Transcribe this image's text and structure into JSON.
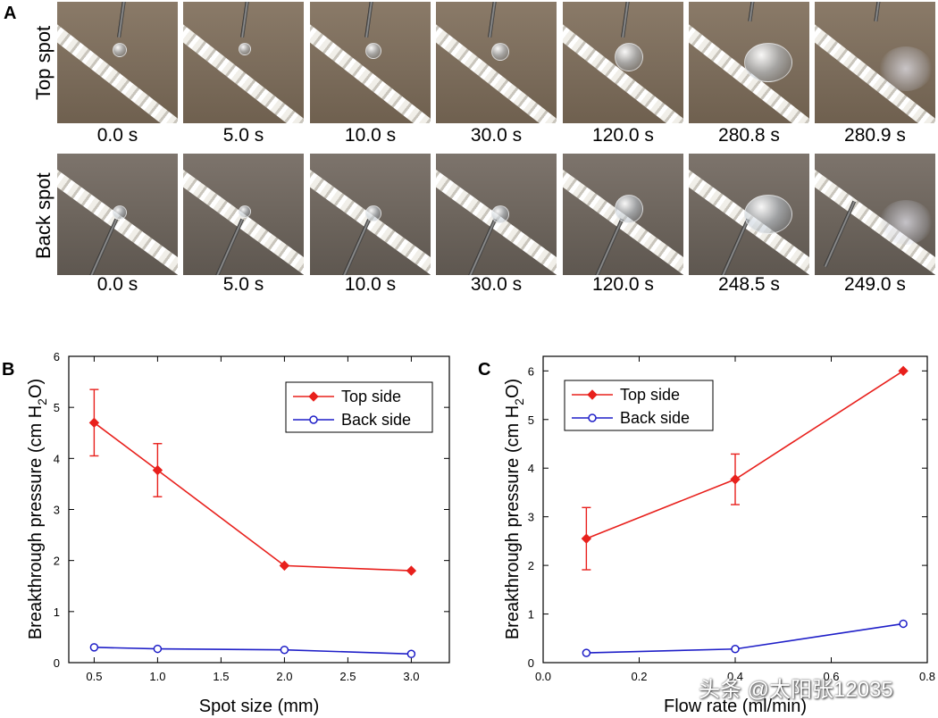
{
  "panel_a": {
    "letter": "A",
    "rows": [
      {
        "label": "Top spot",
        "times": [
          "0.0 s",
          "5.0 s",
          "10.0 s",
          "30.0 s",
          "120.0 s",
          "280.8 s",
          "280.9 s"
        ]
      },
      {
        "label": "Back spot",
        "times": [
          "0.0 s",
          "5.0 s",
          "10.0 s",
          "30.0 s",
          "120.0 s",
          "248.5 s",
          "249.0 s"
        ]
      }
    ]
  },
  "watermark": "头条 @太阳张12035",
  "chart_data": [
    {
      "panel": "B",
      "type": "line",
      "xlabel": "Spot size (mm)",
      "ylabel_main": "Breakthrough pressure (cm H",
      "ylabel_sub": "2",
      "ylabel_tail": "O)",
      "xlim": [
        0.3,
        3.3
      ],
      "ylim": [
        0,
        6
      ],
      "xticks": [
        "0.5",
        "1.0",
        "1.5",
        "2.0",
        "2.5",
        "3.0"
      ],
      "xtick_values": [
        0.5,
        1.0,
        1.5,
        2.0,
        2.5,
        3.0
      ],
      "yticks": [
        "0",
        "1",
        "2",
        "3",
        "4",
        "5",
        "6"
      ],
      "ytick_values": [
        0,
        1,
        2,
        3,
        4,
        5,
        6
      ],
      "legend_position": "top-right",
      "series": [
        {
          "name": "Top side",
          "color": "#e8201c",
          "marker": "diamond",
          "x": [
            0.5,
            1.0,
            2.0,
            3.0
          ],
          "y": [
            4.7,
            3.77,
            1.9,
            1.8
          ],
          "err": [
            0.65,
            0.52,
            0,
            0
          ]
        },
        {
          "name": "Back side",
          "color": "#1f1fc8",
          "marker": "open-circle",
          "x": [
            0.5,
            1.0,
            2.0,
            3.0
          ],
          "y": [
            0.3,
            0.27,
            0.25,
            0.17
          ],
          "err": [
            0,
            0,
            0,
            0
          ]
        }
      ]
    },
    {
      "panel": "C",
      "type": "line",
      "xlabel": "Flow rate (ml/min)",
      "ylabel_main": "Breakthrough pressure (cm H",
      "ylabel_sub": "2",
      "ylabel_tail": "O)",
      "xlim": [
        0,
        0.8
      ],
      "ylim": [
        0,
        6.3
      ],
      "xticks": [
        "0.0",
        "0.2",
        "0.4",
        "0.6",
        "0.8"
      ],
      "xtick_values": [
        0.0,
        0.2,
        0.4,
        0.6,
        0.8
      ],
      "yticks": [
        "0",
        "1",
        "2",
        "3",
        "4",
        "5",
        "6"
      ],
      "ytick_values": [
        0,
        1,
        2,
        3,
        4,
        5,
        6
      ],
      "legend_position": "top-left",
      "series": [
        {
          "name": "Top side",
          "color": "#e8201c",
          "marker": "diamond",
          "x": [
            0.09,
            0.4,
            0.75
          ],
          "y": [
            2.55,
            3.77,
            6.0
          ],
          "err": [
            0.64,
            0.52,
            0
          ]
        },
        {
          "name": "Back side",
          "color": "#1f1fc8",
          "marker": "open-circle",
          "x": [
            0.09,
            0.4,
            0.75
          ],
          "y": [
            0.2,
            0.28,
            0.8
          ],
          "err": [
            0,
            0,
            0
          ]
        }
      ]
    }
  ]
}
